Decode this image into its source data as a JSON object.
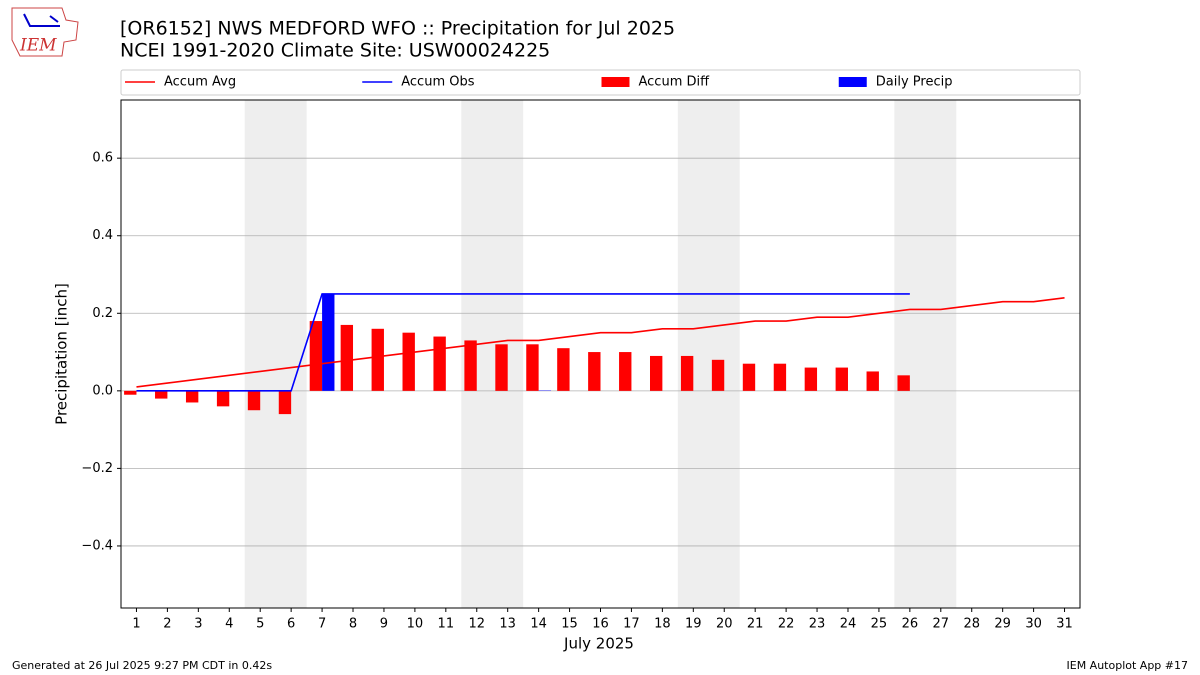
{
  "chart_data": {
    "type": "line-bar",
    "title": "[OR6152] NWS MEDFORD WFO :: Precipitation for Jul 2025",
    "subtitle": "NCEI 1991-2020 Climate Site: USW00024225",
    "xlabel": "July 2025",
    "ylabel": "Precipitation [inch]",
    "logo_text": "IEM",
    "footer_left": "Generated at 26 Jul 2025 9:27 PM CDT in 0.42s",
    "footer_right": "IEM Autoplot App #17",
    "x": [
      1,
      2,
      3,
      4,
      5,
      6,
      7,
      8,
      9,
      10,
      11,
      12,
      13,
      14,
      15,
      16,
      17,
      18,
      19,
      20,
      21,
      22,
      23,
      24,
      25,
      26,
      27,
      28,
      29,
      30,
      31
    ],
    "xlim": [
      0.5,
      31.5
    ],
    "xticks": [
      1,
      2,
      3,
      4,
      5,
      6,
      7,
      8,
      9,
      10,
      11,
      12,
      13,
      14,
      15,
      16,
      17,
      18,
      19,
      20,
      21,
      22,
      23,
      24,
      25,
      26,
      27,
      28,
      29,
      30,
      31
    ],
    "ylim": [
      -0.56,
      0.75
    ],
    "yticks": [
      {
        "value": -0.4,
        "label": "−0.4"
      },
      {
        "value": -0.2,
        "label": "−0.2"
      },
      {
        "value": 0,
        "label": "0.0"
      },
      0.2,
      0.4,
      0.6
    ],
    "grid": true,
    "weekend_spans": [
      [
        4.5,
        6.5
      ],
      [
        11.5,
        13.5
      ],
      [
        18.5,
        20.5
      ],
      [
        25.5,
        27.5
      ]
    ],
    "legend": "top",
    "series": [
      {
        "name": "Accum Avg",
        "kind": "line",
        "color": "#ff0000",
        "values": [
          0.01,
          0.02,
          0.03,
          0.04,
          0.05,
          0.06,
          0.07,
          0.08,
          0.09,
          0.1,
          0.11,
          0.12,
          0.13,
          0.13,
          0.14,
          0.15,
          0.15,
          0.16,
          0.16,
          0.17,
          0.18,
          0.18,
          0.19,
          0.19,
          0.2,
          0.21,
          0.21,
          0.22,
          0.23,
          0.23,
          0.24
        ]
      },
      {
        "name": "Accum Obs",
        "kind": "line",
        "color": "#0000ff",
        "values": [
          0,
          0,
          0,
          0,
          0,
          0,
          0.25,
          0.25,
          0.25,
          0.25,
          0.25,
          0.25,
          0.25,
          0.25,
          0.25,
          0.25,
          0.25,
          0.25,
          0.25,
          0.25,
          0.25,
          0.25,
          0.25,
          0.25,
          0.25,
          0.25,
          null,
          null,
          null,
          null,
          null
        ]
      },
      {
        "name": "Accum Diff",
        "kind": "bar",
        "offset": "left",
        "color": "#ff0000",
        "values": [
          -0.01,
          -0.02,
          -0.03,
          -0.04,
          -0.05,
          -0.06,
          0.18,
          0.17,
          0.16,
          0.15,
          0.14,
          0.13,
          0.12,
          0.12,
          0.11,
          0.1,
          0.1,
          0.09,
          0.09,
          0.08,
          0.07,
          0.07,
          0.06,
          0.06,
          0.05,
          0.04,
          null,
          null,
          null,
          null,
          null
        ]
      },
      {
        "name": "Daily Precip",
        "kind": "bar",
        "offset": "right",
        "color": "#0000ff",
        "values": [
          0,
          0,
          0,
          0,
          0,
          0,
          0.25,
          0,
          0,
          0,
          0,
          0,
          0,
          0.001,
          0,
          0,
          0,
          0,
          0,
          0,
          0,
          0,
          0,
          0,
          0,
          0,
          null,
          null,
          null,
          null,
          null
        ]
      }
    ]
  }
}
